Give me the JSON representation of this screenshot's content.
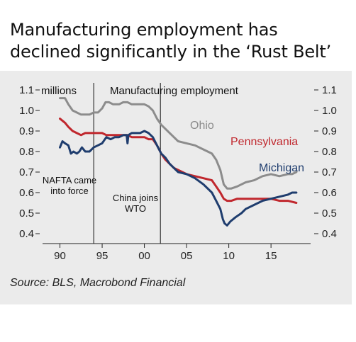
{
  "title": "Manufacturing employment has declined significantly in the ‘Rust Belt’",
  "source": "Source: BLS, Macrobond Financial",
  "colors": {
    "background": "#ebebeb",
    "ohio": "#8c8c8c",
    "pennsylvania": "#c0272d",
    "michigan": "#1f3d6e",
    "axis_text": "#222222"
  },
  "chart_data": {
    "type": "line",
    "title": "Manufacturing employment",
    "ylabel": "millions",
    "ylim": [
      0.4,
      1.1
    ],
    "yticks": [
      0.4,
      0.5,
      0.6,
      0.7,
      0.8,
      0.9,
      1.0,
      1.1
    ],
    "ytick_labels": [
      "0.4",
      "0.5",
      "0.6",
      "0.7",
      "0.8",
      "0.9",
      "1.0",
      "1.1"
    ],
    "xlim": [
      1989.2,
      2018.6
    ],
    "xticks": [
      1990,
      1995,
      2000,
      2005,
      2010,
      2015
    ],
    "xtick_labels": [
      "90",
      "95",
      "00",
      "05",
      "10",
      "15"
    ],
    "grid": false,
    "series": [
      {
        "name": "Ohio",
        "color": "#8c8c8c",
        "x": [
          1990.0,
          1990.6,
          1991.0,
          1991.5,
          1992.0,
          1992.5,
          1993.0,
          1993.5,
          1994.0,
          1994.5,
          1995.0,
          1995.4,
          1995.8,
          1996.3,
          1997.0,
          1997.5,
          1998.0,
          1998.5,
          1999.0,
          1999.5,
          2000.0,
          2000.5,
          2001.0,
          2001.5,
          2002.0,
          2002.5,
          2003.0,
          2003.5,
          2004.0,
          2005.0,
          2006.0,
          2007.0,
          2008.0,
          2008.5,
          2009.0,
          2009.4,
          2009.8,
          2010.3,
          2011.0,
          2012.0,
          2013.0,
          2014.0,
          2015.0,
          2016.0,
          2017.0,
          2017.5,
          2018.0
        ],
        "y": [
          1.06,
          1.06,
          1.03,
          1.0,
          0.99,
          0.98,
          0.98,
          0.98,
          0.99,
          0.99,
          1.01,
          1.04,
          1.04,
          1.03,
          1.03,
          1.04,
          1.04,
          1.03,
          1.03,
          1.03,
          1.03,
          1.02,
          1.0,
          0.96,
          0.93,
          0.91,
          0.89,
          0.87,
          0.85,
          0.84,
          0.83,
          0.81,
          0.79,
          0.76,
          0.71,
          0.64,
          0.62,
          0.62,
          0.63,
          0.65,
          0.66,
          0.68,
          0.69,
          0.68,
          0.69,
          0.69,
          0.7
        ]
      },
      {
        "name": "Pennsylvania",
        "color": "#c0272d",
        "x": [
          1990.0,
          1990.6,
          1991.0,
          1991.5,
          1992.0,
          1992.5,
          1993.0,
          1993.5,
          1994.0,
          1994.5,
          1995.0,
          1995.5,
          1996.0,
          1997.0,
          1998.0,
          1998.5,
          1999.0,
          1999.5,
          2000.0,
          2000.5,
          2001.0,
          2001.5,
          2002.0,
          2002.5,
          2003.0,
          2003.5,
          2004.0,
          2005.0,
          2006.0,
          2007.0,
          2008.0,
          2008.5,
          2009.0,
          2009.4,
          2009.8,
          2010.3,
          2011.0,
          2012.0,
          2013.0,
          2014.0,
          2015.0,
          2016.0,
          2017.0,
          2018.0
        ],
        "y": [
          0.96,
          0.94,
          0.92,
          0.9,
          0.89,
          0.88,
          0.89,
          0.89,
          0.89,
          0.89,
          0.89,
          0.88,
          0.88,
          0.88,
          0.88,
          0.87,
          0.87,
          0.87,
          0.87,
          0.86,
          0.86,
          0.83,
          0.79,
          0.76,
          0.74,
          0.72,
          0.71,
          0.69,
          0.68,
          0.67,
          0.66,
          0.63,
          0.6,
          0.57,
          0.56,
          0.56,
          0.57,
          0.57,
          0.57,
          0.57,
          0.57,
          0.56,
          0.56,
          0.55
        ]
      },
      {
        "name": "Michigan",
        "color": "#1f3d6e",
        "x": [
          1990.0,
          1990.3,
          1990.6,
          1991.0,
          1991.3,
          1991.6,
          1992.0,
          1992.3,
          1992.6,
          1993.0,
          1993.5,
          1994.0,
          1994.5,
          1995.0,
          1995.5,
          1996.0,
          1996.5,
          1997.0,
          1997.5,
          1997.9,
          1998.0,
          1998.1,
          1998.5,
          1999.0,
          1999.5,
          2000.0,
          2000.5,
          2001.0,
          2001.5,
          2002.0,
          2002.5,
          2003.0,
          2003.5,
          2004.0,
          2005.0,
          2006.0,
          2007.0,
          2008.0,
          2008.5,
          2009.0,
          2009.3,
          2009.5,
          2009.8,
          2010.2,
          2010.8,
          2011.5,
          2012.0,
          2013.0,
          2014.0,
          2015.0,
          2016.0,
          2017.0,
          2017.5,
          2018.0
        ],
        "y": [
          0.82,
          0.85,
          0.84,
          0.83,
          0.79,
          0.8,
          0.79,
          0.8,
          0.82,
          0.8,
          0.8,
          0.82,
          0.83,
          0.84,
          0.87,
          0.86,
          0.87,
          0.87,
          0.88,
          0.88,
          0.84,
          0.88,
          0.89,
          0.89,
          0.89,
          0.9,
          0.89,
          0.87,
          0.83,
          0.79,
          0.77,
          0.74,
          0.72,
          0.7,
          0.69,
          0.67,
          0.64,
          0.6,
          0.56,
          0.52,
          0.47,
          0.45,
          0.44,
          0.46,
          0.48,
          0.5,
          0.52,
          0.54,
          0.56,
          0.57,
          0.58,
          0.59,
          0.6,
          0.6
        ]
      }
    ],
    "events": [
      {
        "x": 1994.0,
        "label": "NAFTA came into force"
      },
      {
        "x": 2001.9,
        "label": "China joins WTO"
      }
    ]
  }
}
